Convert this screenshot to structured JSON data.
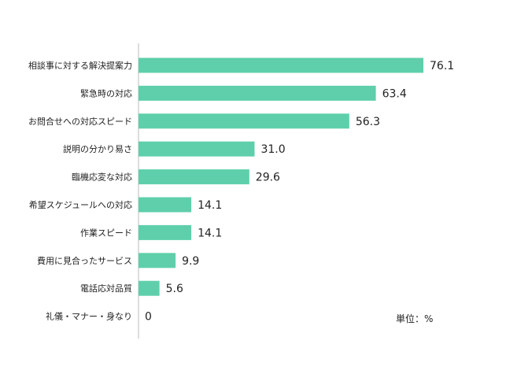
{
  "chart_data": {
    "type": "bar",
    "orientation": "horizontal",
    "categories": [
      "相談事に対する解決提案力",
      "緊急時の対応",
      "お問合せへの対応スピード",
      "説明の分かり易さ",
      "臨機応変な対応",
      "希望スケジュールへの対応",
      "作業スピード",
      "費用に見合ったサービス",
      "電話応対品質",
      "礼儀・マナー・身なり"
    ],
    "values": [
      76.1,
      63.4,
      56.3,
      31.0,
      29.6,
      14.1,
      14.1,
      9.9,
      5.6,
      0
    ],
    "value_labels": [
      "76.1",
      "63.4",
      "56.3",
      "31.0",
      "29.6",
      "14.1",
      "14.1",
      "9.9",
      "5.6",
      "0"
    ],
    "unit_label": "単位：%",
    "xlim": [
      0,
      100
    ],
    "bar_color": "#5ecfaa",
    "axis_color": "#bbbbbb",
    "grid": false,
    "legend": "none"
  }
}
